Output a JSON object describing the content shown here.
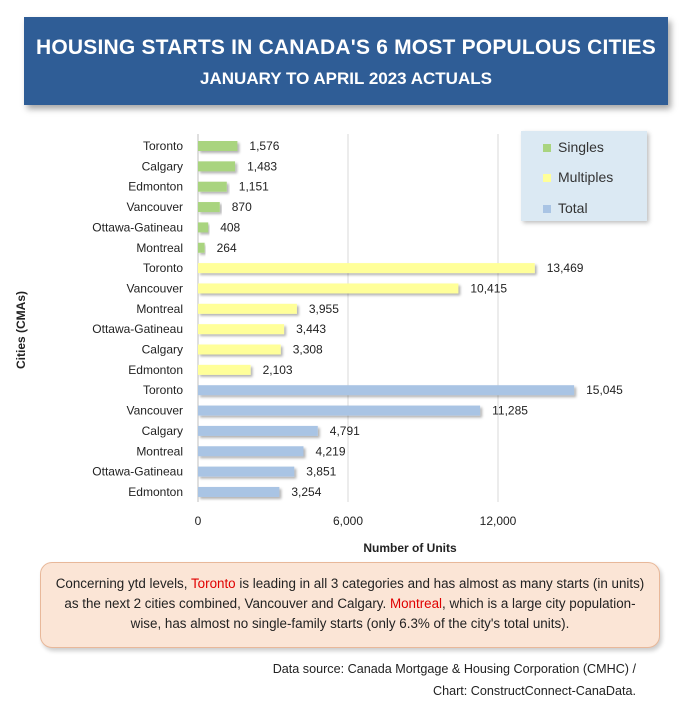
{
  "header": {
    "title": "HOUSING STARTS IN CANADA'S 6 MOST POPULOUS CITIES",
    "subtitle": "JANUARY TO APRIL 2023 ACTUALS"
  },
  "colors": {
    "singles": "#a9d47f",
    "multiples": "#ffff99",
    "total": "#a9c4e4"
  },
  "chart_data": {
    "type": "bar",
    "orientation": "horizontal",
    "xlabel": "Number of Units",
    "ylabel": "Cities (CMAs)",
    "xlim": [
      0,
      14000
    ],
    "xticks": [
      {
        "value": 0,
        "label": "0"
      },
      {
        "value": 6000,
        "label": "6,000"
      },
      {
        "value": 12000,
        "label": "12,000"
      }
    ],
    "grid": "vertical",
    "legend_position": "top-right",
    "series": [
      {
        "name": "Singles",
        "categories": [
          "Toronto",
          "Calgary",
          "Edmonton",
          "Vancouver",
          "Ottawa-Gatineau",
          "Montreal"
        ],
        "values": [
          1576,
          1483,
          1151,
          870,
          408,
          264
        ],
        "labels": [
          "1,576",
          "1,483",
          "1,151",
          "870",
          "408",
          "264"
        ]
      },
      {
        "name": "Multiples",
        "categories": [
          "Toronto",
          "Vancouver",
          "Montreal",
          "Ottawa-Gatineau",
          "Calgary",
          "Edmonton"
        ],
        "values": [
          13469,
          10415,
          3955,
          3443,
          3308,
          2103
        ],
        "labels": [
          "13,469",
          "10,415",
          "3,955",
          "3,443",
          "3,308",
          "2,103"
        ]
      },
      {
        "name": "Total",
        "categories": [
          "Toronto",
          "Vancouver",
          "Calgary",
          "Montreal",
          "Ottawa-Gatineau",
          "Edmonton"
        ],
        "values": [
          15045,
          11285,
          4791,
          4219,
          3851,
          3254
        ],
        "labels": [
          "15,045",
          "11,285",
          "4,791",
          "4,219",
          "3,851",
          "3,254"
        ]
      }
    ]
  },
  "note": {
    "part1": "Concerning ytd levels, ",
    "highlight1": "Toronto",
    "part2": " is leading in all 3 categories and has almost as many starts (in units) as the next 2 cities combined, Vancouver and Calgary. ",
    "highlight2": "Montreal",
    "part3": ", which is a large city population-wise, has almost no single-family starts (only 6.3% of the city's total units)."
  },
  "source": {
    "line1": "Data source: Canada Mortgage & Housing Corporation (CMHC) /",
    "line2": "Chart: ConstructConnect-CanaData."
  }
}
